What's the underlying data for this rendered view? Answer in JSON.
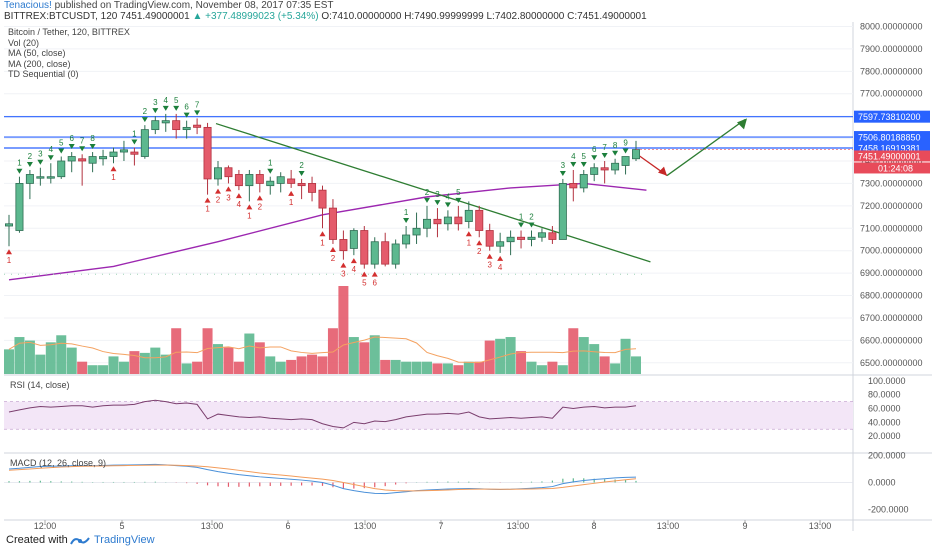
{
  "header": {
    "author": "Tenacious!",
    "published_text": "published on TradingView.com, November 08, 2017 07:35 EST",
    "symbol_line_prefix": "BITTREX:BTCUSDT, 120",
    "last": "7451.49000001",
    "change": "▲ +377.48999023 (+5.34%)",
    "ohlc": "O:7410.00000000 H:7490.99999999 L:7402.80000000 C:7451.49000001"
  },
  "legend": {
    "title": "Bitcoin / Tether, 120, BITTREX",
    "items": [
      "Vol (20)",
      "MA (50, close)",
      "MA (200, close)",
      "TD Sequential (0)"
    ]
  },
  "rsi_title": "RSI (14, close)",
  "macd_title": "MACD (12, 26, close, 9)",
  "price_axis": [
    "8000.00000000",
    "7900.00000000",
    "7800.00000000",
    "7700.00000000",
    "7600.00000000",
    "7500.00000000",
    "7400.00000000",
    "7300.00000000",
    "7200.00000000",
    "7100.00000000",
    "7000.00000000",
    "6900.00000000",
    "6800.00000000",
    "6700.00000000",
    "6600.00000000",
    "6500.00000000"
  ],
  "price_tags": {
    "level1": "7597.73810200",
    "level2": "7506.80188850",
    "level3": "7458.16919381",
    "last": "7451.49000001",
    "countdown": "01:24:08"
  },
  "rsi_axis": [
    "100.0000",
    "80.0000",
    "60.0000",
    "40.0000",
    "20.0000"
  ],
  "macd_axis": [
    "200.0000",
    "0.0000",
    "-200.0000"
  ],
  "time_axis": [
    "12:00",
    "5",
    "13:00",
    "6",
    "13:00",
    "7",
    "13:00",
    "8",
    "13:00",
    "9",
    "13:00"
  ],
  "footer": {
    "created": "Created with",
    "brand": "TradingView"
  },
  "colors": {
    "up": "#4caf8a",
    "down": "#e84b5a",
    "ma": "#9c27b0",
    "trend": "#2e7d32",
    "level": "#2962ff",
    "rsi": "#7b3f6e"
  },
  "chart_data": {
    "type": "candlestick",
    "price_range": [
      6450,
      8020
    ],
    "candles": [
      {
        "o": 7110,
        "h": 7160,
        "l": 7020,
        "c": 7120
      },
      {
        "o": 7090,
        "h": 7330,
        "l": 7080,
        "c": 7300
      },
      {
        "o": 7300,
        "h": 7360,
        "l": 7230,
        "c": 7340
      },
      {
        "o": 7330,
        "h": 7370,
        "l": 7290,
        "c": 7330
      },
      {
        "o": 7330,
        "h": 7390,
        "l": 7300,
        "c": 7330
      },
      {
        "o": 7330,
        "h": 7420,
        "l": 7320,
        "c": 7400
      },
      {
        "o": 7400,
        "h": 7440,
        "l": 7350,
        "c": 7420
      },
      {
        "o": 7410,
        "h": 7430,
        "l": 7290,
        "c": 7400
      },
      {
        "o": 7390,
        "h": 7440,
        "l": 7350,
        "c": 7420
      },
      {
        "o": 7410,
        "h": 7450,
        "l": 7380,
        "c": 7420
      },
      {
        "o": 7420,
        "h": 7460,
        "l": 7390,
        "c": 7440
      },
      {
        "o": 7440,
        "h": 7490,
        "l": 7400,
        "c": 7450
      },
      {
        "o": 7440,
        "h": 7460,
        "l": 7380,
        "c": 7430
      },
      {
        "o": 7420,
        "h": 7560,
        "l": 7410,
        "c": 7540
      },
      {
        "o": 7540,
        "h": 7600,
        "l": 7520,
        "c": 7580
      },
      {
        "o": 7570,
        "h": 7610,
        "l": 7530,
        "c": 7580
      },
      {
        "o": 7580,
        "h": 7610,
        "l": 7500,
        "c": 7540
      },
      {
        "o": 7540,
        "h": 7580,
        "l": 7500,
        "c": 7550
      },
      {
        "o": 7560,
        "h": 7590,
        "l": 7520,
        "c": 7550
      },
      {
        "o": 7550,
        "h": 7570,
        "l": 7250,
        "c": 7320
      },
      {
        "o": 7320,
        "h": 7400,
        "l": 7290,
        "c": 7370
      },
      {
        "o": 7370,
        "h": 7380,
        "l": 7300,
        "c": 7330
      },
      {
        "o": 7340,
        "h": 7360,
        "l": 7270,
        "c": 7290
      },
      {
        "o": 7290,
        "h": 7360,
        "l": 7220,
        "c": 7340
      },
      {
        "o": 7340,
        "h": 7360,
        "l": 7260,
        "c": 7300
      },
      {
        "o": 7290,
        "h": 7330,
        "l": 7250,
        "c": 7310
      },
      {
        "o": 7300,
        "h": 7350,
        "l": 7260,
        "c": 7330
      },
      {
        "o": 7320,
        "h": 7360,
        "l": 7280,
        "c": 7300
      },
      {
        "o": 7300,
        "h": 7320,
        "l": 7230,
        "c": 7290
      },
      {
        "o": 7300,
        "h": 7330,
        "l": 7220,
        "c": 7260
      },
      {
        "o": 7270,
        "h": 7290,
        "l": 7100,
        "c": 7190
      },
      {
        "o": 7190,
        "h": 7230,
        "l": 7030,
        "c": 7050
      },
      {
        "o": 7050,
        "h": 7090,
        "l": 6960,
        "c": 7000
      },
      {
        "o": 7010,
        "h": 7100,
        "l": 6980,
        "c": 7090
      },
      {
        "o": 7090,
        "h": 7110,
        "l": 6920,
        "c": 6940
      },
      {
        "o": 6940,
        "h": 7060,
        "l": 6920,
        "c": 7040
      },
      {
        "o": 7040,
        "h": 7080,
        "l": 6930,
        "c": 6940
      },
      {
        "o": 6940,
        "h": 7050,
        "l": 6920,
        "c": 7030
      },
      {
        "o": 7030,
        "h": 7110,
        "l": 7010,
        "c": 7070
      },
      {
        "o": 7070,
        "h": 7170,
        "l": 7030,
        "c": 7100
      },
      {
        "o": 7100,
        "h": 7200,
        "l": 7060,
        "c": 7140
      },
      {
        "o": 7140,
        "h": 7190,
        "l": 7060,
        "c": 7120
      },
      {
        "o": 7120,
        "h": 7180,
        "l": 7090,
        "c": 7150
      },
      {
        "o": 7150,
        "h": 7200,
        "l": 7090,
        "c": 7120
      },
      {
        "o": 7130,
        "h": 7220,
        "l": 7100,
        "c": 7180
      },
      {
        "o": 7180,
        "h": 7200,
        "l": 7060,
        "c": 7090
      },
      {
        "o": 7090,
        "h": 7120,
        "l": 7000,
        "c": 7020
      },
      {
        "o": 7020,
        "h": 7080,
        "l": 6990,
        "c": 7040
      },
      {
        "o": 7040,
        "h": 7090,
        "l": 6980,
        "c": 7060
      },
      {
        "o": 7060,
        "h": 7090,
        "l": 7010,
        "c": 7050
      },
      {
        "o": 7050,
        "h": 7090,
        "l": 7020,
        "c": 7060
      },
      {
        "o": 7060,
        "h": 7100,
        "l": 7040,
        "c": 7080
      },
      {
        "o": 7080,
        "h": 7110,
        "l": 7030,
        "c": 7050
      },
      {
        "o": 7050,
        "h": 7320,
        "l": 7050,
        "c": 7300
      },
      {
        "o": 7300,
        "h": 7360,
        "l": 7220,
        "c": 7280
      },
      {
        "o": 7280,
        "h": 7360,
        "l": 7260,
        "c": 7340
      },
      {
        "o": 7340,
        "h": 7390,
        "l": 7310,
        "c": 7370
      },
      {
        "o": 7370,
        "h": 7400,
        "l": 7300,
        "c": 7360
      },
      {
        "o": 7360,
        "h": 7410,
        "l": 7340,
        "c": 7390
      },
      {
        "o": 7380,
        "h": 7420,
        "l": 7340,
        "c": 7420
      },
      {
        "o": 7410,
        "h": 7490,
        "l": 7400,
        "c": 7451
      }
    ],
    "volume_shape": [
      0.28,
      0.42,
      0.38,
      0.22,
      0.36,
      0.44,
      0.3,
      0.14,
      0.1,
      0.1,
      0.2,
      0.14,
      0.26,
      0.24,
      0.3,
      0.22,
      0.52,
      0.12,
      0.14,
      0.52,
      0.34,
      0.3,
      0.14,
      0.46,
      0.36,
      0.2,
      0.14,
      0.16,
      0.2,
      0.22,
      0.2,
      0.52,
      1.0,
      0.42,
      0.36,
      0.44,
      0.16,
      0.16,
      0.14,
      0.14,
      0.14,
      0.12,
      0.12,
      0.1,
      0.14,
      0.14,
      0.38,
      0.4,
      0.42,
      0.26,
      0.14,
      0.1,
      0.14,
      0.1,
      0.52,
      0.42,
      0.34,
      0.2,
      0.12,
      0.4,
      0.2
    ],
    "td_up_counts": [
      [
        1,
        1
      ],
      [
        2,
        2
      ],
      [
        3,
        3
      ],
      [
        4,
        4
      ],
      [
        5,
        5
      ],
      [
        6,
        6
      ],
      [
        7,
        7
      ],
      [
        8,
        8
      ],
      [
        12,
        1
      ],
      [
        13,
        2
      ],
      [
        14,
        3
      ],
      [
        15,
        4
      ],
      [
        16,
        5
      ],
      [
        17,
        6
      ],
      [
        18,
        7
      ],
      [
        25,
        1
      ],
      [
        28,
        2
      ],
      [
        38,
        1
      ],
      [
        40,
        2
      ],
      [
        41,
        3
      ],
      [
        42,
        4
      ],
      [
        43,
        5
      ],
      [
        49,
        1
      ],
      [
        50,
        2
      ],
      [
        53,
        3
      ],
      [
        54,
        4
      ],
      [
        55,
        5
      ],
      [
        56,
        6
      ],
      [
        57,
        7
      ],
      [
        58,
        8
      ],
      [
        59,
        9
      ]
    ],
    "td_down_counts": [
      [
        0,
        1
      ],
      [
        10,
        1
      ],
      [
        19,
        1
      ],
      [
        20,
        2
      ],
      [
        21,
        3
      ],
      [
        22,
        4
      ],
      [
        23,
        1
      ],
      [
        24,
        2
      ],
      [
        27,
        1
      ],
      [
        30,
        1
      ],
      [
        31,
        2
      ],
      [
        32,
        3
      ],
      [
        33,
        4
      ],
      [
        34,
        5
      ],
      [
        35,
        6
      ],
      [
        44,
        1
      ],
      [
        45,
        2
      ],
      [
        46,
        3
      ],
      [
        47,
        4
      ]
    ],
    "ma50": [
      [
        0,
        6870
      ],
      [
        10,
        6930
      ],
      [
        20,
        7040
      ],
      [
        30,
        7160
      ],
      [
        40,
        7240
      ],
      [
        48,
        7280
      ],
      [
        55,
        7300
      ],
      [
        61,
        7270
      ]
    ],
    "rsi_series": [
      55,
      58,
      61,
      63,
      62,
      63,
      64,
      64,
      62,
      64,
      65,
      65,
      66,
      70,
      72,
      70,
      67,
      68,
      66,
      45,
      52,
      50,
      48,
      47,
      48,
      46,
      45,
      44,
      45,
      44,
      38,
      34,
      32,
      40,
      38,
      42,
      41,
      44,
      48,
      50,
      52,
      52,
      53,
      52,
      55,
      48,
      45,
      46,
      47,
      46,
      47,
      48,
      46,
      62,
      60,
      62,
      63,
      61,
      62,
      62,
      64
    ],
    "macd_line": [
      100,
      105,
      112,
      118,
      120,
      122,
      124,
      125,
      124,
      126,
      128,
      129,
      130,
      132,
      134,
      130,
      125,
      120,
      112,
      95,
      80,
      68,
      58,
      50,
      42,
      36,
      30,
      24,
      18,
      10,
      0,
      -20,
      -45,
      -60,
      -72,
      -80,
      -82,
      -75,
      -68,
      -60,
      -55,
      -52,
      -48,
      -46,
      -44,
      -46,
      -50,
      -52,
      -50,
      -46,
      -42,
      -38,
      -30,
      -8,
      5,
      15,
      22,
      28,
      34,
      38,
      40
    ],
    "signal_line": [
      90,
      95,
      100,
      105,
      110,
      114,
      117,
      120,
      121,
      122,
      124,
      125,
      126,
      127,
      128,
      128,
      127,
      125,
      122,
      116,
      108,
      100,
      90,
      80,
      70,
      62,
      55,
      48,
      40,
      32,
      25,
      15,
      0,
      -15,
      -30,
      -45,
      -55,
      -60,
      -62,
      -62,
      -60,
      -58,
      -55,
      -52,
      -50,
      -49,
      -49,
      -50,
      -50,
      -49,
      -48,
      -46,
      -44,
      -36,
      -26,
      -16,
      -6,
      4,
      12,
      20,
      28
    ]
  }
}
